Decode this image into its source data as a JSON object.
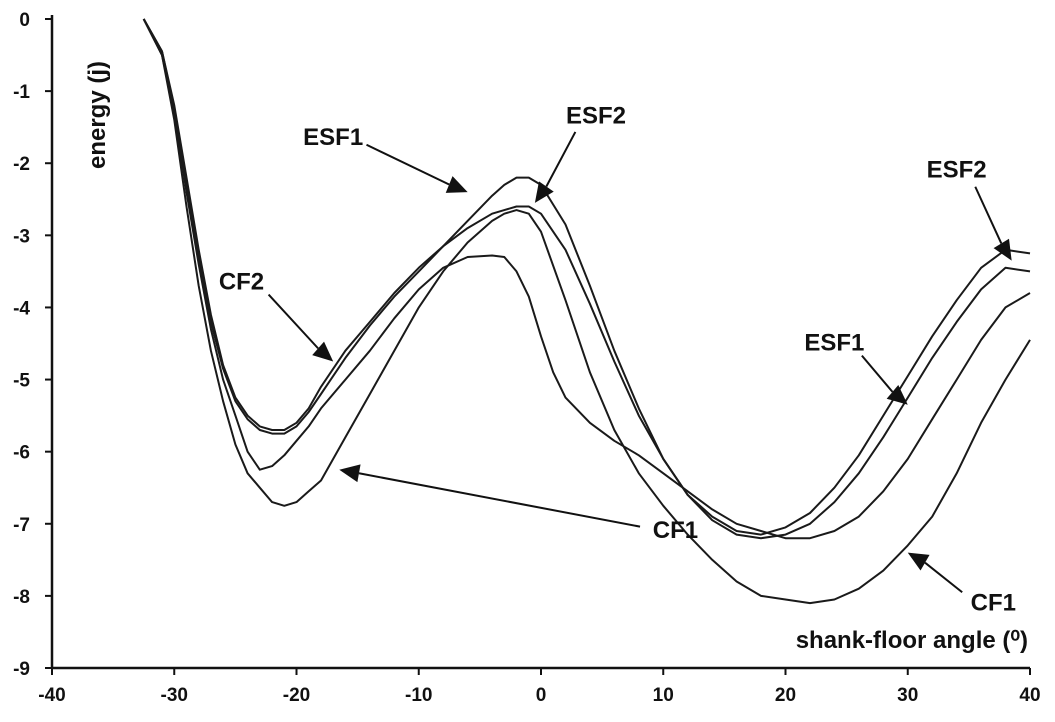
{
  "chart_data": {
    "type": "line",
    "title": "",
    "xlabel": "shank-floor angle (⁰)",
    "ylabel": "energy (j)",
    "xlim": [
      -40,
      40
    ],
    "ylim": [
      -9,
      0
    ],
    "x_ticks": [
      -40,
      -30,
      -20,
      -10,
      0,
      10,
      20,
      30,
      40
    ],
    "y_ticks": [
      0,
      -1,
      -2,
      -3,
      -4,
      -5,
      -6,
      -7,
      -8,
      -9
    ],
    "grid": false,
    "series": [
      {
        "x": [
          -32.5,
          -31,
          -30,
          -29,
          -28,
          -27,
          -26,
          -25,
          -24,
          -23,
          -22,
          -21,
          -20,
          -19,
          -18,
          -17,
          -16,
          -14,
          -12,
          -10,
          -8,
          -6,
          -4,
          -3,
          -2,
          -1,
          0,
          2,
          4,
          6,
          8,
          10,
          12,
          14,
          16,
          18,
          20,
          22,
          24,
          26,
          28,
          30,
          32,
          34,
          36,
          38,
          40
        ],
        "values": [
          0,
          -0.5,
          -1.4,
          -2.6,
          -3.7,
          -4.6,
          -5.3,
          -5.9,
          -6.3,
          -6.5,
          -6.7,
          -6.75,
          -6.7,
          -6.55,
          -6.4,
          -6.1,
          -5.8,
          -5.2,
          -4.6,
          -4.0,
          -3.5,
          -3.1,
          -2.8,
          -2.7,
          -2.65,
          -2.7,
          -2.95,
          -3.9,
          -4.9,
          -5.7,
          -6.3,
          -6.75,
          -7.15,
          -7.5,
          -7.8,
          -8.0,
          -8.05,
          -8.1,
          -8.05,
          -7.9,
          -7.65,
          -7.3,
          -6.9,
          -6.3,
          -5.6,
          -5.0,
          -4.45
        ]
      },
      {
        "x": [
          -32.5,
          -31,
          -30,
          -29,
          -28,
          -27,
          -26,
          -25,
          -24,
          -23,
          -22,
          -21,
          -20,
          -19,
          -18,
          -16,
          -14,
          -12,
          -10,
          -8,
          -6,
          -4,
          -3,
          -2,
          -1,
          0,
          1,
          2,
          4,
          6,
          8,
          10,
          12,
          14,
          16,
          18,
          20,
          22,
          24,
          26,
          28,
          30,
          32,
          34,
          36,
          38,
          40
        ],
        "values": [
          0,
          -0.5,
          -1.3,
          -2.4,
          -3.4,
          -4.3,
          -5.0,
          -5.5,
          -6.0,
          -6.25,
          -6.2,
          -6.05,
          -5.85,
          -5.65,
          -5.4,
          -5.0,
          -4.6,
          -4.15,
          -3.75,
          -3.45,
          -3.3,
          -3.28,
          -3.3,
          -3.5,
          -3.85,
          -4.4,
          -4.9,
          -5.25,
          -5.6,
          -5.85,
          -6.05,
          -6.3,
          -6.55,
          -6.8,
          -7.0,
          -7.1,
          -7.2,
          -7.2,
          -7.1,
          -6.9,
          -6.55,
          -6.1,
          -5.55,
          -5.0,
          -4.45,
          -4.0,
          -3.8
        ]
      },
      {
        "x": [
          -32.5,
          -31,
          -30,
          -29,
          -28,
          -27,
          -26,
          -25,
          -24,
          -23,
          -22,
          -21,
          -20,
          -19,
          -18,
          -16,
          -14,
          -12,
          -10,
          -8,
          -6,
          -4,
          -3,
          -2,
          -1,
          0,
          2,
          4,
          6,
          8,
          10,
          12,
          14,
          16,
          18,
          20,
          22,
          24,
          26,
          28,
          30,
          32,
          34,
          36,
          38,
          40
        ],
        "values": [
          0,
          -0.45,
          -1.2,
          -2.2,
          -3.2,
          -4.1,
          -4.8,
          -5.25,
          -5.5,
          -5.65,
          -5.7,
          -5.7,
          -5.6,
          -5.4,
          -5.1,
          -4.6,
          -4.2,
          -3.8,
          -3.45,
          -3.15,
          -2.9,
          -2.7,
          -2.65,
          -2.6,
          -2.6,
          -2.7,
          -3.2,
          -3.95,
          -4.75,
          -5.5,
          -6.1,
          -6.6,
          -6.95,
          -7.15,
          -7.2,
          -7.15,
          -7.0,
          -6.7,
          -6.3,
          -5.8,
          -5.25,
          -4.7,
          -4.2,
          -3.75,
          -3.45,
          -3.5
        ]
      },
      {
        "x": [
          -32.5,
          -31,
          -30,
          -29,
          -28,
          -27,
          -26,
          -25,
          -24,
          -23,
          -22,
          -21,
          -20,
          -19,
          -18,
          -16,
          -14,
          -12,
          -10,
          -8,
          -6,
          -4,
          -3,
          -2,
          -1,
          0,
          2,
          4,
          6,
          8,
          10,
          12,
          14,
          16,
          18,
          20,
          22,
          24,
          26,
          28,
          30,
          32,
          34,
          36,
          38,
          40
        ],
        "values": [
          0,
          -0.45,
          -1.25,
          -2.3,
          -3.3,
          -4.2,
          -4.85,
          -5.3,
          -5.55,
          -5.7,
          -5.75,
          -5.75,
          -5.65,
          -5.45,
          -5.2,
          -4.7,
          -4.25,
          -3.85,
          -3.5,
          -3.15,
          -2.8,
          -2.45,
          -2.3,
          -2.2,
          -2.2,
          -2.3,
          -2.85,
          -3.7,
          -4.6,
          -5.4,
          -6.1,
          -6.6,
          -6.9,
          -7.1,
          -7.15,
          -7.05,
          -6.85,
          -6.5,
          -6.05,
          -5.5,
          -4.95,
          -4.4,
          -3.9,
          -3.45,
          -3.2,
          -3.25
        ]
      }
    ],
    "annotations": [
      {
        "text": "ESF1",
        "label_xy": [
          -17,
          -1.75
        ],
        "arrow_to": [
          -6,
          -2.4
        ]
      },
      {
        "text": "ESF2",
        "label_xy": [
          4.5,
          -1.45
        ],
        "arrow_to": [
          -0.5,
          -2.55
        ]
      },
      {
        "text": "CF2",
        "label_xy": [
          -24.5,
          -3.75
        ],
        "arrow_to": [
          -17,
          -4.75
        ]
      },
      {
        "text": "CF1",
        "label_xy": [
          11,
          -7.2
        ],
        "arrow_to": [
          -16.5,
          -6.25
        ]
      },
      {
        "text": "ESF2",
        "label_xy": [
          34,
          -2.2
        ],
        "arrow_to": [
          38.5,
          -3.35
        ]
      },
      {
        "text": "ESF1",
        "label_xy": [
          24,
          -4.6
        ],
        "arrow_to": [
          30,
          -5.35
        ]
      },
      {
        "text": "CF1",
        "label_xy": [
          37,
          -8.2
        ],
        "arrow_to": [
          30,
          -7.4
        ]
      }
    ]
  }
}
